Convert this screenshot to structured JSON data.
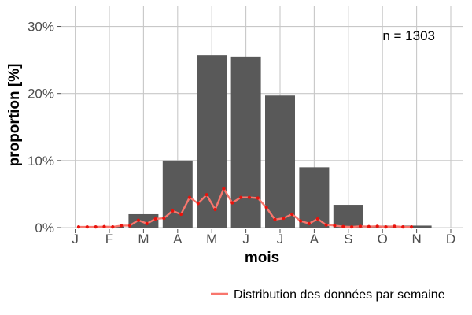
{
  "chart_data": {
    "type": "bar",
    "categories": [
      "J",
      "F",
      "M",
      "A",
      "M",
      "J",
      "J",
      "A",
      "S",
      "O",
      "N",
      "D"
    ],
    "values": [
      0.0,
      0.2,
      2.0,
      10.0,
      25.7,
      25.5,
      19.7,
      9.0,
      3.4,
      0.3,
      0.3,
      0.0
    ],
    "xlabel": "mois",
    "ylabel": "proportion [%]",
    "ylim": [
      0,
      33
    ],
    "yticks": [
      0,
      10,
      20,
      30
    ],
    "ytick_labels": [
      "0%",
      "10%",
      "20%",
      "30%"
    ],
    "grid": true,
    "annotation": "n = 1303",
    "colors": {
      "bar": "#595959",
      "line": "#f8766d",
      "point": "#e8120c"
    },
    "series": [
      {
        "name": "Distribution des données par semaine",
        "type": "line",
        "x": [
          1.1,
          1.35,
          1.6,
          1.85,
          2.1,
          2.35,
          2.6,
          2.85,
          3.1,
          3.35,
          3.6,
          3.85,
          4.1,
          4.35,
          4.6,
          4.85,
          5.1,
          5.35,
          5.6,
          5.85,
          6.1,
          6.35,
          6.6,
          6.85,
          7.1,
          7.35,
          7.6,
          7.85,
          8.1,
          8.35,
          8.6,
          8.85,
          9.1,
          9.35,
          9.6,
          9.85,
          10.1,
          10.35,
          10.6,
          10.85
        ],
        "y": [
          0.1,
          0.1,
          0.1,
          0.15,
          0.1,
          0.3,
          0.3,
          1.1,
          0.6,
          1.3,
          1.4,
          2.5,
          2.0,
          4.5,
          3.6,
          4.9,
          2.7,
          5.8,
          3.7,
          4.5,
          4.5,
          4.4,
          3.0,
          1.2,
          1.4,
          2.0,
          1.0,
          0.6,
          1.3,
          0.4,
          0.3,
          0.15,
          0.1,
          0.2,
          0.15,
          0.2,
          0.1,
          0.2,
          0.1,
          0.1
        ]
      }
    ]
  }
}
